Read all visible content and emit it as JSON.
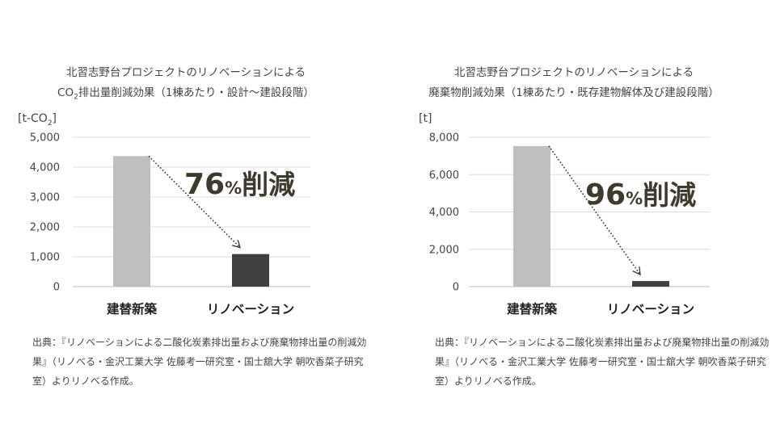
{
  "charts": [
    {
      "title_line1": "北習志野台プロジェクトのリノベーションによる",
      "title_line2_prefix": "CO",
      "title_line2_sub": "2",
      "title_line2_rest": "排出量削減効果（1棟あたり・設計〜建設段階）",
      "unit_prefix": "[t-CO",
      "unit_sub": "2",
      "unit_suffix": "]",
      "reduction_number": "76",
      "reduction_percent": "%",
      "reduction_word": "削減",
      "source_text": "出典：『リノベーションによる二酸化炭素排出量および廃棄物排出量の削減効果』（リノべる・金沢工業大学 佐藤考一研究室・国士舘大学 朝吹香菜子研究室）よりリノベる作成。"
    },
    {
      "title_line1": "北習志野台プロジェクトのリノベーションによる",
      "title_line2_prefix": "",
      "title_line2_sub": "",
      "title_line2_rest": "廃棄物削減効果（1棟あたり・既存建物解体及び建設段階）",
      "unit_prefix": "[t]",
      "unit_sub": "",
      "unit_suffix": "",
      "reduction_number": "96",
      "reduction_percent": "%",
      "reduction_word": "削減",
      "source_text": "出典：『リノベーションによる二酸化炭素排出量および廃棄物排出量の削減効果』（リノべる・金沢工業大学 佐藤考一研究室・国士舘大学 朝吹香菜子研究室）よりリノベる作成。"
    }
  ],
  "chart_data": [
    {
      "type": "bar",
      "title": "北習志野台プロジェクトのリノベーションによる CO2排出量削減効果（1棟あたり・設計〜建設段階）",
      "ylabel": "[t-CO2]",
      "categories": [
        "建替新築",
        "リノベーション"
      ],
      "values": [
        4370,
        1090
      ],
      "ylim": [
        0,
        5000
      ],
      "yticks": [
        0,
        1000,
        2000,
        3000,
        4000,
        5000
      ],
      "ytick_labels": [
        "0",
        "1,000",
        "2,000",
        "3,000",
        "4,000",
        "5,000"
      ],
      "bar_colors": [
        "#bfbfbf",
        "#404040"
      ],
      "grid": true,
      "legend": "none",
      "annotation": "76%削減"
    },
    {
      "type": "bar",
      "title": "北習志野台プロジェクトのリノベーションによる 廃棄物削減効果（1棟あたり・既存建物解体及び建設段階）",
      "ylabel": "[t]",
      "categories": [
        "建替新築",
        "リノベーション"
      ],
      "values": [
        7530,
        300
      ],
      "ylim": [
        0,
        8000
      ],
      "yticks": [
        0,
        2000,
        4000,
        6000,
        8000
      ],
      "ytick_labels": [
        "0",
        "2,000",
        "4,000",
        "6,000",
        "8,000"
      ],
      "bar_colors": [
        "#bfbfbf",
        "#404040"
      ],
      "grid": true,
      "legend": "none",
      "annotation": "96%削減"
    }
  ]
}
